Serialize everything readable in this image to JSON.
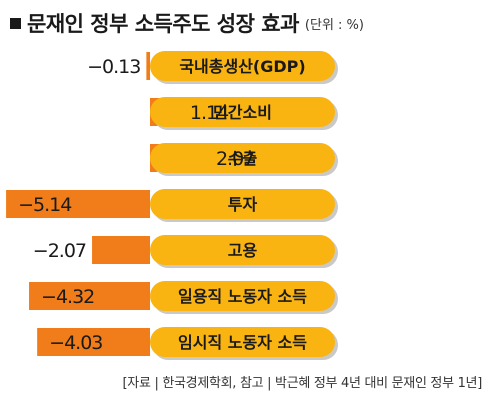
{
  "title": "문재인 정부 소득주도 성장 효과",
  "unit": "(단위 : %)",
  "source": "[자료 | 한국경제학회, 참고 | 박근혜 정부 4년 대비 문재인 정부 1년]",
  "colors": {
    "bar": "#f07d1a",
    "pill": "#f9b412",
    "pill_shadow": "#c9c9c9",
    "text": "#1a1a1a"
  },
  "chart_data": {
    "type": "bar",
    "orientation": "horizontal",
    "title": "문재인 정부 소득주도 성장 효과",
    "unit": "%",
    "categories": [
      "국내총생산(GDP)",
      "민간소비",
      "수출",
      "투자",
      "고용",
      "일용직 노동자 소득",
      "임시직 노동자 소득"
    ],
    "values": [
      -0.13,
      1.14,
      2.07,
      -5.14,
      -2.07,
      -4.32,
      -4.03
    ],
    "value_labels": [
      "−0.13",
      "1.14",
      "2.07",
      "−5.14",
      "−2.07",
      "−4.32",
      "−4.03"
    ],
    "grid": false,
    "legend": "none"
  }
}
